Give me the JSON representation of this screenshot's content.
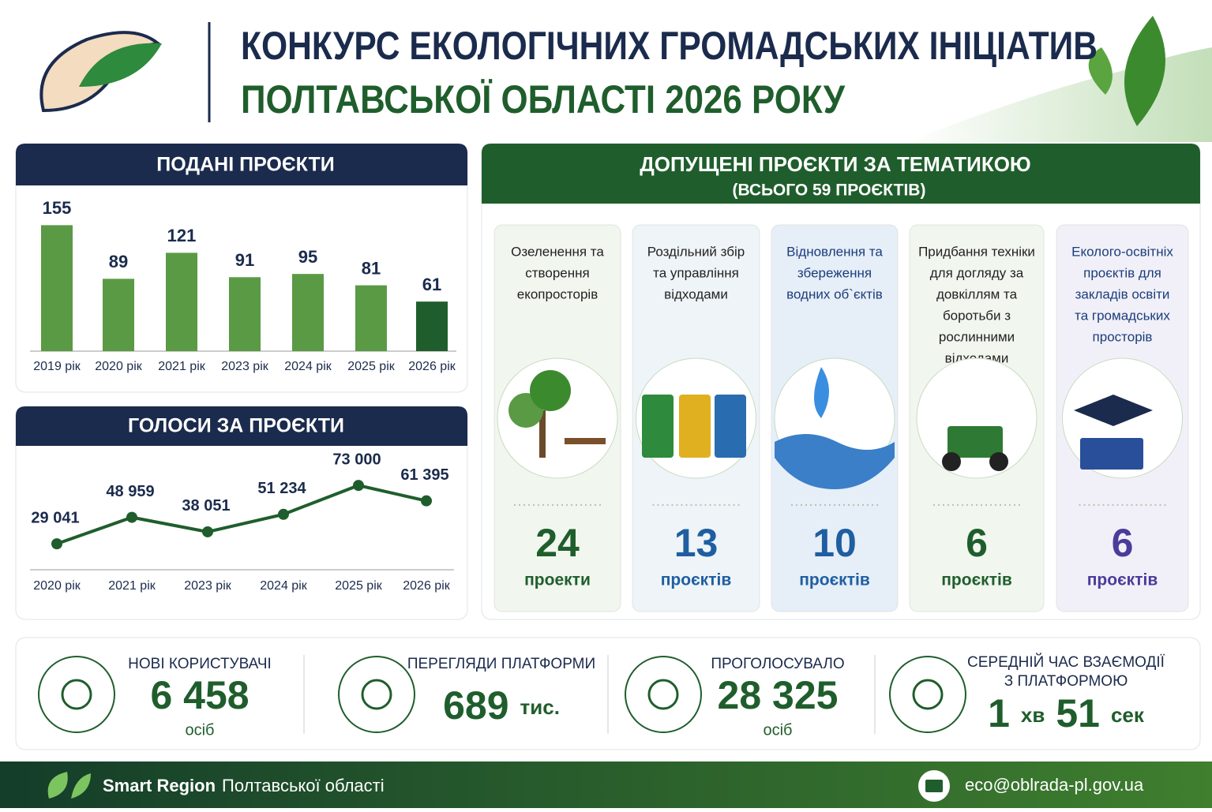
{
  "header": {
    "title_line1": "КОНКУРС ЕКОЛОГІЧНИХ ГРОМАДСЬКИХ ІНІЦІАТИВ",
    "title_line2": "ПОЛТАВСЬКОЇ ОБЛАСТІ 2026 РОКУ"
  },
  "chart_data": [
    {
      "type": "bar",
      "title": "ПОДАНІ ПРОЄКТИ",
      "categories": [
        "2019 рік",
        "2020 рік",
        "2021 рік",
        "2023 рік",
        "2024 рік",
        "2025 рік",
        "2026 рік"
      ],
      "values": [
        155,
        89,
        121,
        91,
        95,
        81,
        61
      ],
      "colors": [
        "#5a9a45",
        "#5a9a45",
        "#5a9a45",
        "#5a9a45",
        "#5a9a45",
        "#5a9a45",
        "#1f5e2c"
      ]
    },
    {
      "type": "line",
      "title": "ГОЛОСИ ЗА ПРОЄКТИ",
      "categories": [
        "2020 рік",
        "2021 рік",
        "2023 рік",
        "2024 рік",
        "2025 рік",
        "2026 рік"
      ],
      "values": [
        29041,
        48959,
        38051,
        51234,
        73000,
        61395
      ],
      "value_labels": [
        "29 041",
        "48 959",
        "38 051",
        "51 234",
        "73 000",
        "61 395"
      ],
      "color": "#1f5e2c"
    }
  ],
  "topics": {
    "title": "ДОПУЩЕНІ ПРОЄКТИ ЗА ТЕМАТИКОЮ",
    "subtitle": "(ВСЬОГО 59 ПРОЄКТІВ)",
    "items": [
      {
        "label": [
          "Озеленення та",
          "створення",
          "екопросторів"
        ],
        "count": "24",
        "unit": "проекти",
        "color": "#1f5e2c"
      },
      {
        "label": [
          "Роздільний збір",
          "та управління",
          "відходами"
        ],
        "count": "13",
        "unit": "проєктів",
        "color": "#1f5ea0"
      },
      {
        "label": [
          "Відновлення та",
          "збереження",
          "водних об`єктів"
        ],
        "count": "10",
        "unit": "проєктів",
        "color": "#1f5ea0"
      },
      {
        "label": [
          "Придбання техніки",
          "для догляду за",
          "довкіллям та",
          "боротьби з",
          "рослинними",
          "відходами"
        ],
        "count": "6",
        "unit": "проєктів",
        "color": "#1f5e2c"
      },
      {
        "label": [
          "Еколого-освітніх",
          "проєктів для",
          "закладів освіти",
          "та громадських",
          "просторів"
        ],
        "count": "6",
        "unit": "проєктів",
        "color": "#4a3c9a"
      }
    ]
  },
  "stats": [
    {
      "label": [
        "НОВІ КОРИСТУВАЧІ"
      ],
      "value": [
        "6 458"
      ],
      "unit": "осіб"
    },
    {
      "label": [
        "ПЕРЕГЛЯДИ ПЛАТФОРМИ"
      ],
      "value": [
        "689",
        "тис."
      ]
    },
    {
      "label": [
        "ПРОГОЛОСУВАЛО"
      ],
      "value": [
        "28 325"
      ],
      "unit": "осіб"
    },
    {
      "label": [
        "СЕРЕДНІЙ ЧАС ВЗАЄМОДІЇ",
        "З ПЛАТФОРМОЮ"
      ],
      "value": [
        "1",
        "хв",
        "51",
        "сек"
      ]
    }
  ],
  "footer": {
    "brand": "Smart Region",
    "region": "Полтавської області",
    "email": "eco@oblrada-pl.gov.ua"
  }
}
